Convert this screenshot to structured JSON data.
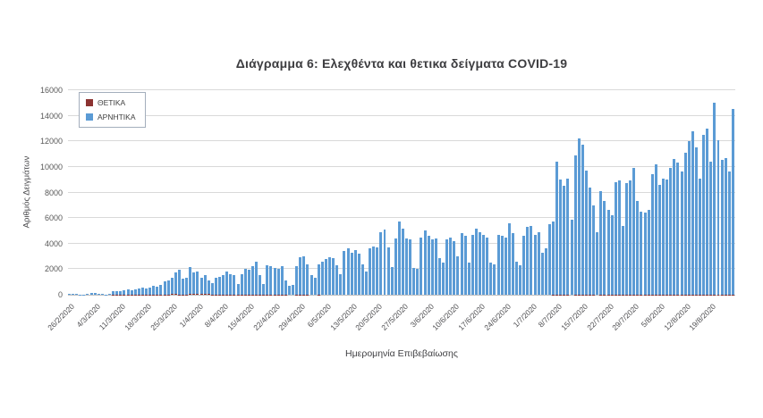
{
  "chart_data": {
    "type": "bar",
    "title": "Διάγραμμα 6: Ελεχθέντα και θετικα δείγματα COVID-19",
    "xlabel": "Ημερομηνία Επιβεβαίωσης",
    "ylabel": "Αριθμός Δειγμάτων",
    "ylim": [
      0,
      16000
    ],
    "y_ticks": [
      0,
      2000,
      4000,
      6000,
      8000,
      10000,
      12000,
      14000,
      16000
    ],
    "grid": true,
    "legend_position": "top-left-inside",
    "x_start_date": "26/2/2020",
    "x_tick_interval_days": 7,
    "x_tick_labels": [
      "26/2/2020",
      "4/3/2020",
      "11/3/2020",
      "18/3/2020",
      "25/3/2020",
      "1/4/2020",
      "8/4/2020",
      "15/4/2020",
      "22/4/2020",
      "29/4/2020",
      "6/5/2020",
      "13/5/2020",
      "20/5/2020",
      "27/5/2020",
      "3/6/2020",
      "10/6/2020",
      "17/6/2020",
      "24/6/2020",
      "1/7/2020",
      "8/7/2020",
      "15/7/2020",
      "22/7/2020",
      "29/7/2020",
      "5/8/2020",
      "12/8/2020",
      "19/8/2020"
    ],
    "series": [
      {
        "name": "ΘΕΤΙΚΑ",
        "color": "#8c3331",
        "values": [
          1,
          1,
          0,
          0,
          1,
          2,
          2,
          2,
          1,
          2,
          1,
          3,
          6,
          8,
          10,
          14,
          19,
          17,
          21,
          20,
          24,
          28,
          26,
          30,
          32,
          25,
          28,
          35,
          40,
          38,
          33,
          30,
          34,
          45,
          41,
          52,
          48,
          44,
          38,
          30,
          36,
          33,
          31,
          28,
          25,
          22,
          16,
          25,
          27,
          24,
          22,
          20,
          15,
          8,
          18,
          16,
          14,
          12,
          11,
          7,
          4,
          5,
          10,
          12,
          10,
          8,
          5,
          4,
          6,
          5,
          4,
          5,
          4,
          3,
          2,
          5,
          4,
          3,
          4,
          3,
          2,
          1,
          3,
          2,
          2,
          3,
          2,
          1,
          1,
          2,
          3,
          2,
          1,
          1,
          0,
          1,
          2,
          1,
          1,
          1,
          2,
          1,
          0,
          1,
          1,
          1,
          0,
          2,
          1,
          0,
          1,
          2,
          1,
          1,
          1,
          0,
          0,
          1,
          1,
          2,
          1,
          1,
          0,
          1,
          2,
          3,
          2,
          3,
          4,
          2,
          3,
          5,
          6,
          10,
          8,
          7,
          9,
          5,
          12,
          14,
          13,
          10,
          9,
          8,
          5,
          9,
          8,
          7,
          6,
          10,
          12,
          6,
          10,
          11,
          14,
          9,
          8,
          8,
          9,
          12,
          14,
          11,
          12,
          12,
          14,
          16,
          15,
          13,
          17,
          19,
          21,
          18,
          13,
          20,
          22,
          16,
          26,
          20,
          17,
          18,
          15,
          24
        ]
      },
      {
        "name": "ΑΡΝΗΤΙΚΑ",
        "color": "#5b9bd5",
        "values": [
          60,
          100,
          80,
          30,
          20,
          90,
          120,
          110,
          40,
          90,
          30,
          60,
          250,
          300,
          280,
          350,
          420,
          320,
          380,
          500,
          550,
          480,
          550,
          700,
          600,
          750,
          1000,
          1100,
          1300,
          1700,
          1900,
          1200,
          1300,
          2100,
          1700,
          1800,
          1300,
          1500,
          1100,
          900,
          1300,
          1400,
          1500,
          1800,
          1600,
          1500,
          800,
          1600,
          2000,
          1900,
          2200,
          2600,
          1500,
          800,
          2300,
          2200,
          2100,
          2000,
          2200,
          1100,
          700,
          800,
          2200,
          2900,
          3000,
          2400,
          1500,
          1300,
          2400,
          2600,
          2800,
          2900,
          2850,
          2300,
          1600,
          3400,
          3600,
          3300,
          3500,
          3200,
          2400,
          1800,
          3600,
          3800,
          3700,
          4900,
          5100,
          3700,
          2200,
          4400,
          5700,
          5200,
          4400,
          4300,
          2100,
          2000,
          4500,
          5000,
          4600,
          4300,
          4400,
          2900,
          2500,
          4300,
          4500,
          4200,
          3000,
          4800,
          4600,
          2500,
          4700,
          5200,
          4900,
          4700,
          4500,
          2500,
          2400,
          4700,
          4600,
          4500,
          5600,
          4800,
          2600,
          2300,
          4600,
          5300,
          5400,
          4700,
          4900,
          3300,
          3600,
          5500,
          5700,
          10400,
          9000,
          8500,
          9100,
          5900,
          10900,
          12200,
          11700,
          9700,
          8400,
          7000,
          4900,
          8100,
          7300,
          6600,
          6200,
          8800,
          8900,
          5400,
          8700,
          8900,
          9900,
          7300,
          6500,
          6400,
          6600,
          9400,
          10200,
          8600,
          9100,
          9000,
          9900,
          10600,
          10300,
          9600,
          11100,
          12000,
          12800,
          11500,
          9100,
          12500,
          13000,
          10400,
          15000,
          12100,
          10500,
          10700,
          9600,
          14500
        ]
      }
    ]
  }
}
